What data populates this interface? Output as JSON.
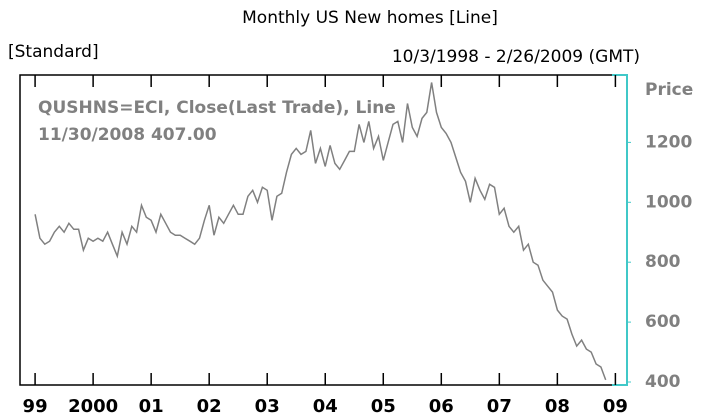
{
  "chart_data": {
    "type": "line",
    "title": "Monthly US New homes [Line]",
    "subtitle": "[Standard]",
    "date_range": "10/3/1998 - 2/26/2009 (GMT)",
    "y_axis_label": "Price",
    "annotations": [
      "QUSHNS=ECI, Close(Last Trade), Line",
      "11/30/2008 407.00"
    ],
    "x": [
      1999,
      1999.083,
      1999.167,
      1999.25,
      1999.333,
      1999.417,
      1999.5,
      1999.583,
      1999.667,
      1999.75,
      1999.833,
      1999.917,
      2000,
      2000.083,
      2000.167,
      2000.25,
      2000.333,
      2000.417,
      2000.5,
      2000.583,
      2000.667,
      2000.75,
      2000.833,
      2000.917,
      2001,
      2001.083,
      2001.167,
      2001.25,
      2001.333,
      2001.417,
      2001.5,
      2001.583,
      2001.667,
      2001.75,
      2001.833,
      2001.917,
      2002,
      2002.083,
      2002.167,
      2002.25,
      2002.333,
      2002.417,
      2002.5,
      2002.583,
      2002.667,
      2002.75,
      2002.833,
      2002.917,
      2003,
      2003.083,
      2003.167,
      2003.25,
      2003.333,
      2003.417,
      2003.5,
      2003.583,
      2003.667,
      2003.75,
      2003.833,
      2003.917,
      2004,
      2004.083,
      2004.167,
      2004.25,
      2004.333,
      2004.417,
      2004.5,
      2004.583,
      2004.667,
      2004.75,
      2004.833,
      2004.917,
      2005,
      2005.083,
      2005.167,
      2005.25,
      2005.333,
      2005.417,
      2005.5,
      2005.583,
      2005.667,
      2005.75,
      2005.833,
      2005.917,
      2006,
      2006.083,
      2006.167,
      2006.25,
      2006.333,
      2006.417,
      2006.5,
      2006.583,
      2006.667,
      2006.75,
      2006.833,
      2006.917,
      2007,
      2007.083,
      2007.167,
      2007.25,
      2007.333,
      2007.417,
      2007.5,
      2007.583,
      2007.667,
      2007.75,
      2007.833,
      2007.917,
      2008,
      2008.083,
      2008.167,
      2008.25,
      2008.333,
      2008.417,
      2008.5,
      2008.583,
      2008.667,
      2008.75,
      2008.833
    ],
    "series": [
      {
        "name": "QUSHNS=ECI",
        "color": "#808080",
        "values": [
          960,
          880,
          860,
          870,
          900,
          920,
          900,
          930,
          910,
          910,
          840,
          880,
          870,
          880,
          870,
          900,
          860,
          820,
          900,
          860,
          920,
          900,
          990,
          950,
          940,
          900,
          960,
          930,
          900,
          890,
          890,
          880,
          870,
          860,
          880,
          940,
          990,
          890,
          950,
          930,
          960,
          990,
          960,
          960,
          1020,
          1040,
          1000,
          1050,
          1040,
          940,
          1020,
          1030,
          1100,
          1160,
          1180,
          1160,
          1170,
          1240,
          1130,
          1180,
          1120,
          1190,
          1130,
          1110,
          1140,
          1170,
          1170,
          1260,
          1200,
          1270,
          1180,
          1220,
          1140,
          1200,
          1260,
          1270,
          1200,
          1330,
          1250,
          1220,
          1280,
          1300,
          1400,
          1300,
          1250,
          1230,
          1200,
          1150,
          1100,
          1070,
          1000,
          1080,
          1040,
          1010,
          1060,
          1050,
          960,
          980,
          920,
          900,
          920,
          840,
          860,
          800,
          790,
          740,
          720,
          700,
          640,
          620,
          610,
          560,
          520,
          540,
          510,
          500,
          460,
          450,
          407
        ]
      }
    ],
    "xlim": [
      1998.74,
      2009.2
    ],
    "xticks": [
      {
        "value": 1999,
        "label": "99"
      },
      2000,
      {
        "value": 2001,
        "label": "01"
      },
      {
        "value": 2002,
        "label": "02"
      },
      {
        "value": 2003,
        "label": "03"
      },
      {
        "value": 2004,
        "label": "04"
      },
      {
        "value": 2005,
        "label": "05"
      },
      {
        "value": 2006,
        "label": "06"
      },
      {
        "value": 2007,
        "label": "07"
      },
      {
        "value": 2008,
        "label": "08"
      },
      {
        "value": 2009,
        "label": "09"
      }
    ],
    "ylim": [
      390,
      1425
    ],
    "yticks": [
      400,
      600,
      800,
      1000,
      1200
    ]
  }
}
